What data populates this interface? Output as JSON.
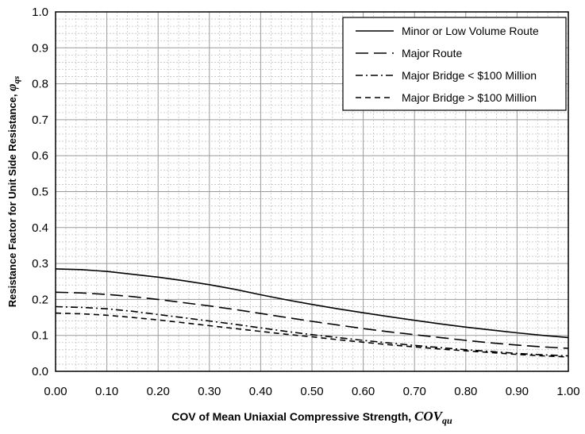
{
  "chart_data": {
    "type": "line",
    "xlabel": "COV of Mean Uniaxial Compressive Strength, ",
    "xlabel_symbol": "COV",
    "xlabel_subscript": "qu",
    "ylabel": "Resistance Factor for Unit Side Resistance, ",
    "ylabel_symbol": "φ",
    "ylabel_subscript": "qs",
    "xlim": [
      0,
      1.0
    ],
    "ylim": [
      0,
      1.0
    ],
    "x_ticks": [
      "0.00",
      "0.10",
      "0.20",
      "0.30",
      "0.40",
      "0.50",
      "0.60",
      "0.70",
      "0.80",
      "0.90",
      "1.00"
    ],
    "y_ticks": [
      "0.0",
      "0.1",
      "0.2",
      "0.3",
      "0.4",
      "0.5",
      "0.6",
      "0.7",
      "0.8",
      "0.9",
      "1.0"
    ],
    "grid": true,
    "legend_position": "top-right",
    "x": [
      0.0,
      0.05,
      0.1,
      0.15,
      0.2,
      0.25,
      0.3,
      0.35,
      0.4,
      0.45,
      0.5,
      0.55,
      0.6,
      0.65,
      0.7,
      0.75,
      0.8,
      0.85,
      0.9,
      0.95,
      1.0
    ],
    "series": [
      {
        "name": "Minor or Low Volume Route",
        "dash": "solid",
        "values": [
          0.285,
          0.283,
          0.278,
          0.27,
          0.262,
          0.252,
          0.241,
          0.228,
          0.213,
          0.199,
          0.186,
          0.174,
          0.163,
          0.152,
          0.142,
          0.132,
          0.123,
          0.115,
          0.107,
          0.1,
          0.094
        ]
      },
      {
        "name": "Major Route",
        "dash": "long-dash",
        "values": [
          0.22,
          0.218,
          0.214,
          0.208,
          0.2,
          0.191,
          0.182,
          0.172,
          0.161,
          0.15,
          0.139,
          0.129,
          0.119,
          0.11,
          0.102,
          0.094,
          0.086,
          0.079,
          0.073,
          0.068,
          0.064
        ]
      },
      {
        "name": "Major Bridge < $100 Million",
        "dash": "dash-dot",
        "values": [
          0.18,
          0.178,
          0.174,
          0.167,
          0.158,
          0.149,
          0.14,
          0.131,
          0.121,
          0.111,
          0.102,
          0.094,
          0.086,
          0.079,
          0.072,
          0.066,
          0.06,
          0.055,
          0.05,
          0.046,
          0.043
        ]
      },
      {
        "name": "Major Bridge > $100 Million",
        "dash": "short-dash",
        "values": [
          0.162,
          0.16,
          0.156,
          0.15,
          0.143,
          0.135,
          0.127,
          0.119,
          0.111,
          0.103,
          0.096,
          0.088,
          0.081,
          0.074,
          0.068,
          0.062,
          0.057,
          0.052,
          0.047,
          0.043,
          0.04
        ]
      }
    ]
  }
}
